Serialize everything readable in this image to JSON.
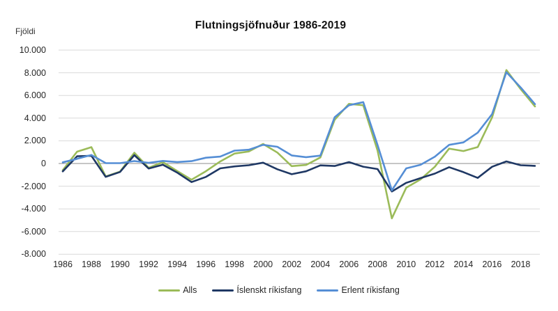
{
  "chart_data": {
    "type": "line",
    "title": "Flutningsjöfnuður 1986-2019",
    "ylabel": "Fjöldi",
    "xlabel": "",
    "grid": true,
    "legend_position": "bottom",
    "ylim": [
      -8000,
      10000
    ],
    "y_tick_step": 2000,
    "y_tick_labels": [
      "10.000",
      "8.000",
      "6.000",
      "4.000",
      "2.000",
      "0",
      "-2.000",
      "-4.000",
      "-6.000",
      "-8.000"
    ],
    "x": [
      1986,
      1987,
      1988,
      1989,
      1990,
      1991,
      1992,
      1993,
      1994,
      1995,
      1996,
      1997,
      1998,
      1999,
      2000,
      2001,
      2002,
      2003,
      2004,
      2005,
      2006,
      2007,
      2008,
      2009,
      2010,
      2011,
      2012,
      2013,
      2014,
      2015,
      2016,
      2017,
      2018,
      2019
    ],
    "x_tick_labels": [
      "1986",
      "1988",
      "1990",
      "1992",
      "1994",
      "1996",
      "1998",
      "2000",
      "2002",
      "2004",
      "2006",
      "2008",
      "2010",
      "2012",
      "2014",
      "2016",
      "2018"
    ],
    "grid_color": "#D9D9D9",
    "zero_line_color": "#8C8C8C",
    "series": [
      {
        "name": "Alls",
        "color": "#9BBB59",
        "values": [
          -590,
          1045,
          1441,
          -1139,
          -719,
          950,
          -379,
          116,
          -671,
          -1432,
          -680,
          177,
          880,
          1059,
          1722,
          963,
          -232,
          -131,
          531,
          3860,
          5255,
          5132,
          1144,
          -4835,
          -2134,
          -1404,
          -291,
          1314,
          1100,
          1447,
          4069,
          8240,
          6556,
          5030
        ]
      },
      {
        "name": "Íslenskt ríkisfang",
        "color": "#1F3864",
        "values": [
          -695,
          635,
          684,
          -1175,
          -748,
          737,
          -443,
          -111,
          -802,
          -1640,
          -1187,
          -429,
          -255,
          -156,
          75,
          -507,
          -944,
          -690,
          -165,
          -219,
          122,
          -280,
          -488,
          -2466,
          -1703,
          -1286,
          -891,
          -328,
          -760,
          -1271,
          -289,
          187,
          -152,
          -206
        ]
      },
      {
        "name": "Erlent ríkisfang",
        "color": "#558ED5",
        "values": [
          105,
          410,
          757,
          36,
          29,
          213,
          64,
          227,
          131,
          208,
          507,
          606,
          1135,
          1215,
          1647,
          1470,
          712,
          559,
          696,
          4079,
          5133,
          5412,
          1632,
          -2369,
          -431,
          -118,
          600,
          1642,
          1860,
          2718,
          4358,
          8053,
          6708,
          5236
        ]
      }
    ]
  }
}
